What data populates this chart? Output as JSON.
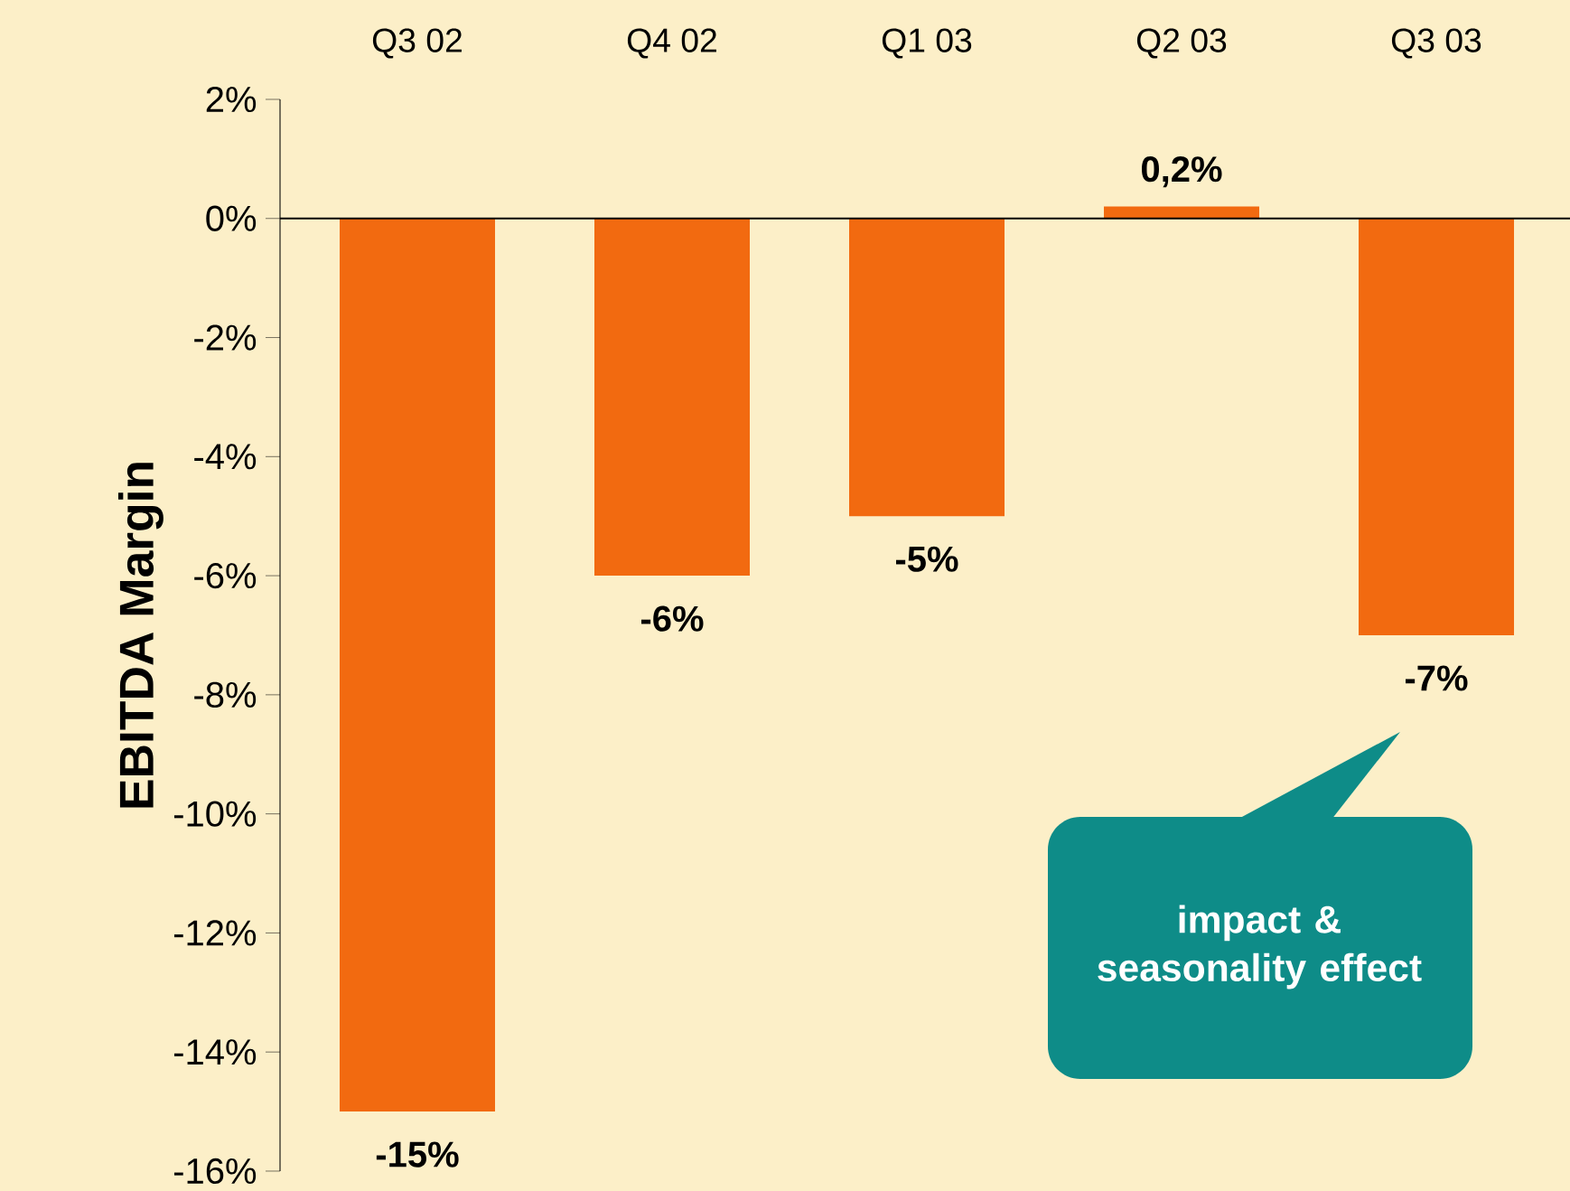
{
  "chart_data": {
    "type": "bar",
    "ylabel": "EBITDA Margin",
    "categories": [
      "Q3 02",
      "Q4 02",
      "Q1 03",
      "Q2 03",
      "Q3 03"
    ],
    "values": [
      -15,
      -6,
      -5,
      0.2,
      -7
    ],
    "value_labels": [
      "-15%",
      "-6%",
      "-5%",
      "0,2%",
      "-7%"
    ],
    "color": "#f26a10",
    "ylim": [
      -16,
      2
    ],
    "yticks": [
      {
        "value": 2,
        "label": "2%"
      },
      {
        "value": 0,
        "label": "0%"
      },
      {
        "value": -2,
        "label": "-2%"
      },
      {
        "value": -4,
        "label": "-4%"
      },
      {
        "value": -6,
        "label": "-6%"
      },
      {
        "value": -8,
        "label": "-8%"
      },
      {
        "value": -10,
        "label": "-10%"
      },
      {
        "value": -12,
        "label": "-12%"
      },
      {
        "value": -14,
        "label": "-14%"
      },
      {
        "value": -16,
        "label": "-16%"
      }
    ],
    "annotations": [
      "impact & seasonality effect"
    ]
  }
}
